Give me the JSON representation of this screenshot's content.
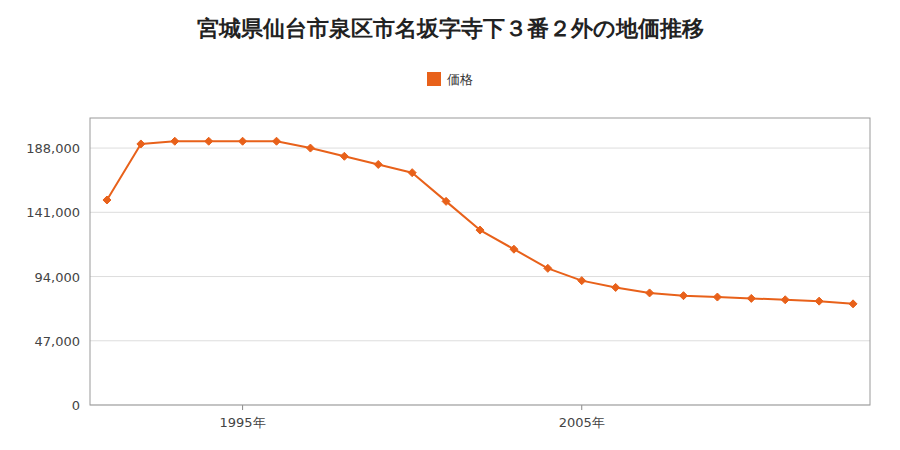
{
  "chart_data": {
    "type": "line",
    "title": "宮城県仙台市泉区市名坂字寺下３番２外の地価推移",
    "x": [
      1991,
      1992,
      1993,
      1994,
      1995,
      1996,
      1997,
      1998,
      1999,
      2000,
      2001,
      2002,
      2003,
      2004,
      2005,
      2006,
      2007,
      2008,
      2009,
      2010,
      2011,
      2012,
      2013
    ],
    "series": [
      {
        "name": "価格",
        "color": "#e8611a",
        "marker": "diamond",
        "values": [
          150000,
          191000,
          193000,
          193000,
          193000,
          193000,
          188000,
          182000,
          176000,
          170000,
          149000,
          128000,
          114000,
          100000,
          91000,
          86000,
          82000,
          80000,
          79000,
          78000,
          77000,
          76000,
          74000
        ]
      }
    ],
    "xlim": [
      1990.5,
      2013.5
    ],
    "xticks": [
      {
        "value": 1995,
        "label": "1995年"
      },
      {
        "value": 2005,
        "label": "2005年"
      }
    ],
    "ylim": [
      0,
      210000
    ],
    "yticks": [
      0,
      {
        "value": 47000,
        "label": "47,000"
      },
      {
        "value": 94000,
        "label": "94,000"
      },
      {
        "value": 141000,
        "label": "141,000"
      },
      {
        "value": 188000,
        "label": "188,000"
      }
    ],
    "grid": "y",
    "legend": "top"
  }
}
